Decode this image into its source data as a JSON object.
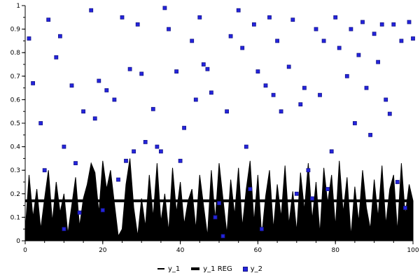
{
  "colors": {
    "background": "#ffffff",
    "axis": "#000000",
    "series_y1": "#000000",
    "series_y1reg": "#000000",
    "scatter": "#2424dd",
    "scatter_edge": "#15158a"
  },
  "chart_data": {
    "type": "mixed",
    "title": "",
    "xlabel": "",
    "ylabel": "",
    "xlim": [
      0,
      100
    ],
    "ylim": [
      0,
      1
    ],
    "x_major_ticks": [
      0,
      20,
      40,
      60,
      80,
      100
    ],
    "x_minor_step": 5,
    "y_major_ticks": [
      0,
      0.1,
      0.2,
      0.3,
      0.4,
      0.5,
      0.6,
      0.7,
      0.8,
      0.9,
      1
    ],
    "y_minor_step": 0.05,
    "grid": false,
    "legend": {
      "position": "bottom",
      "items": [
        {
          "label": "y_1",
          "marker": "thin-line",
          "color": "#000000"
        },
        {
          "label": "y_1 REG",
          "marker": "thick-line",
          "color": "#000000"
        },
        {
          "label": "y_2",
          "marker": "square",
          "color": "#2424dd"
        }
      ]
    },
    "series": [
      {
        "name": "y_1",
        "type": "area",
        "color": "#000000",
        "x_start": 0,
        "x_step": 1,
        "values": [
          0.04,
          0.28,
          0.1,
          0.22,
          0.05,
          0.18,
          0.3,
          0.08,
          0.25,
          0.12,
          0.2,
          0.03,
          0.15,
          0.27,
          0.06,
          0.18,
          0.24,
          0.33,
          0.29,
          0.12,
          0.34,
          0.22,
          0.3,
          0.16,
          0.02,
          0.05,
          0.24,
          0.35,
          0.14,
          0.02,
          0.18,
          0.06,
          0.28,
          0.1,
          0.33,
          0.08,
          0.2,
          0.04,
          0.31,
          0.12,
          0.25,
          0.07,
          0.17,
          0.22,
          0.05,
          0.28,
          0.15,
          0.02,
          0.3,
          0.09,
          0.33,
          0.18,
          0.03,
          0.26,
          0.11,
          0.31,
          0.06,
          0.22,
          0.34,
          0.08,
          0.28,
          0.02,
          0.19,
          0.3,
          0.05,
          0.24,
          0.1,
          0.32,
          0.07,
          0.21,
          0.04,
          0.29,
          0.13,
          0.33,
          0.09,
          0.25,
          0.03,
          0.31,
          0.16,
          0.28,
          0.06,
          0.34,
          0.12,
          0.27,
          0.02,
          0.23,
          0.08,
          0.3,
          0.14,
          0.05,
          0.26,
          0.1,
          0.32,
          0.07,
          0.22,
          0.28,
          0.04,
          0.33,
          0.11,
          0.24,
          0.17
        ]
      },
      {
        "name": "y_1 REG",
        "type": "line",
        "color": "#000000",
        "width": 4,
        "x": [
          0,
          100
        ],
        "y": [
          0.17,
          0.17
        ]
      },
      {
        "name": "y_2",
        "type": "scatter",
        "color": "#2424dd",
        "edge": "#15158a",
        "marker": "square",
        "points": [
          [
            1,
            0.86
          ],
          [
            2,
            0.67
          ],
          [
            4,
            0.5
          ],
          [
            5,
            0.3
          ],
          [
            6,
            0.94
          ],
          [
            8,
            0.78
          ],
          [
            9,
            0.87
          ],
          [
            10,
            0.4
          ],
          [
            10,
            0.05
          ],
          [
            12,
            0.66
          ],
          [
            13,
            0.33
          ],
          [
            14,
            0.12
          ],
          [
            15,
            0.55
          ],
          [
            17,
            0.98
          ],
          [
            18,
            0.52
          ],
          [
            19,
            0.68
          ],
          [
            20,
            0.13
          ],
          [
            21,
            0.64
          ],
          [
            23,
            0.6
          ],
          [
            24,
            0.26
          ],
          [
            25,
            0.95
          ],
          [
            26,
            0.34
          ],
          [
            27,
            0.73
          ],
          [
            28,
            0.38
          ],
          [
            29,
            0.92
          ],
          [
            30,
            0.71
          ],
          [
            31,
            0.42
          ],
          [
            33,
            0.56
          ],
          [
            34,
            0.4
          ],
          [
            35,
            0.38
          ],
          [
            36,
            0.99
          ],
          [
            37,
            0.9
          ],
          [
            39,
            0.72
          ],
          [
            40,
            0.34
          ],
          [
            41,
            0.48
          ],
          [
            43,
            0.85
          ],
          [
            44,
            0.6
          ],
          [
            45,
            0.95
          ],
          [
            46,
            0.75
          ],
          [
            47,
            0.73
          ],
          [
            48,
            0.63
          ],
          [
            49,
            0.1
          ],
          [
            50,
            0.16
          ],
          [
            51,
            0.02
          ],
          [
            52,
            0.55
          ],
          [
            53,
            0.87
          ],
          [
            55,
            0.98
          ],
          [
            56,
            0.82
          ],
          [
            57,
            0.4
          ],
          [
            58,
            0.22
          ],
          [
            59,
            0.92
          ],
          [
            60,
            0.72
          ],
          [
            61,
            0.05
          ],
          [
            62,
            0.66
          ],
          [
            63,
            0.95
          ],
          [
            64,
            0.62
          ],
          [
            65,
            0.85
          ],
          [
            66,
            0.55
          ],
          [
            68,
            0.74
          ],
          [
            69,
            0.94
          ],
          [
            70,
            0.2
          ],
          [
            71,
            0.58
          ],
          [
            72,
            0.65
          ],
          [
            73,
            0.3
          ],
          [
            74,
            0.18
          ],
          [
            75,
            0.9
          ],
          [
            76,
            0.62
          ],
          [
            77,
            0.85
          ],
          [
            78,
            0.22
          ],
          [
            79,
            0.38
          ],
          [
            80,
            0.95
          ],
          [
            81,
            0.82
          ],
          [
            83,
            0.7
          ],
          [
            84,
            0.9
          ],
          [
            85,
            0.5
          ],
          [
            86,
            0.79
          ],
          [
            87,
            0.93
          ],
          [
            88,
            0.65
          ],
          [
            89,
            0.45
          ],
          [
            90,
            0.88
          ],
          [
            91,
            0.76
          ],
          [
            92,
            0.92
          ],
          [
            93,
            0.6
          ],
          [
            94,
            0.54
          ],
          [
            95,
            0.92
          ],
          [
            96,
            0.25
          ],
          [
            97,
            0.85
          ],
          [
            98,
            0.14
          ],
          [
            99,
            0.93
          ],
          [
            100,
            0.86
          ]
        ]
      }
    ]
  }
}
